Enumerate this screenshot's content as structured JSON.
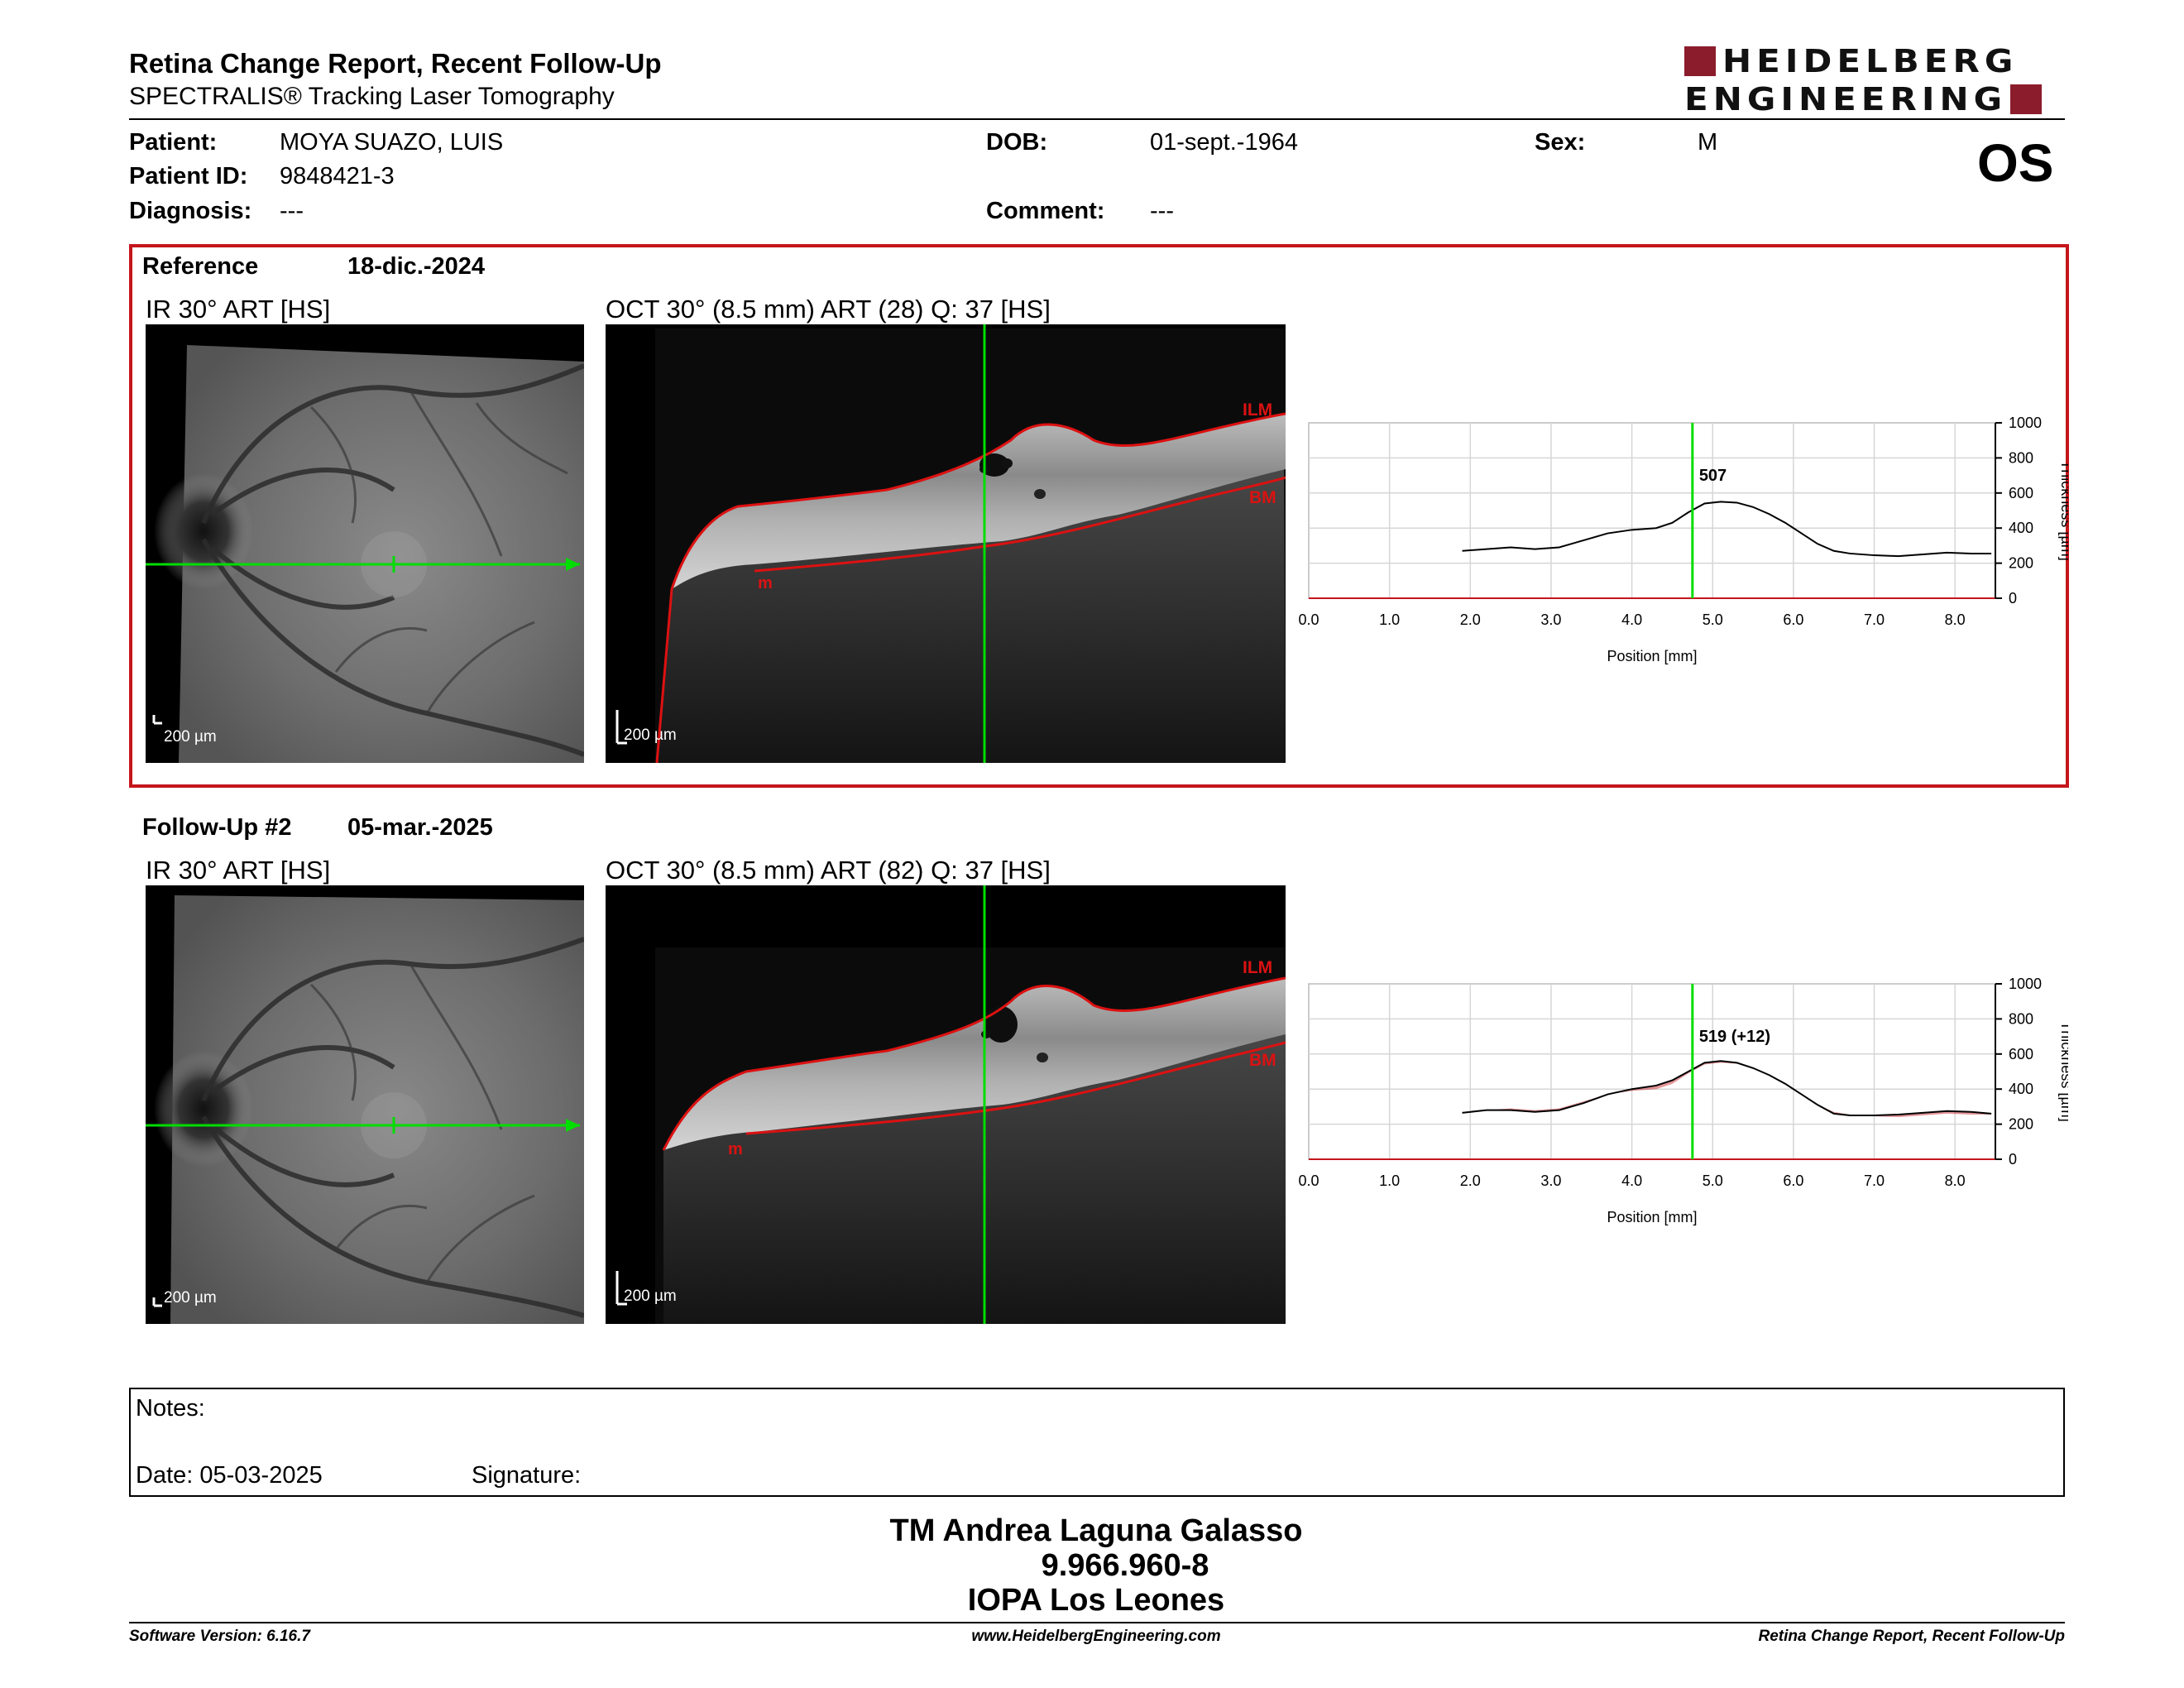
{
  "header": {
    "title": "Retina Change Report, Recent Follow-Up",
    "subtitle": "SPECTRALIS® Tracking Laser Tomography",
    "logo_line1": "HEIDELBERG",
    "logo_line2": "ENGINEERING",
    "eye": "OS"
  },
  "patient": {
    "patient_label": "Patient:",
    "patient_value": "MOYA SUAZO, LUIS",
    "id_label": "Patient ID:",
    "id_value": "9848421-3",
    "diagnosis_label": "Diagnosis:",
    "diagnosis_value": "---",
    "dob_label": "DOB:",
    "dob_value": "01-sept.-1964",
    "comment_label": "Comment:",
    "comment_value": "---",
    "sex_label": "Sex:",
    "sex_value": "M"
  },
  "reference": {
    "label": "Reference",
    "date": "18-dic.-2024",
    "ir_caption": "IR 30° ART [HS]",
    "oct_caption": "OCT 30° (8.5 mm) ART (28) Q: 37 [HS]",
    "scale": "200 µm",
    "ilm": "ILM",
    "bm": "BM",
    "m": "m"
  },
  "followup": {
    "label": "Follow-Up #2",
    "date": "05-mar.-2025",
    "ir_caption": "IR 30° ART [HS]",
    "oct_caption": "OCT 30° (8.5 mm) ART (82) Q: 37 [HS]",
    "scale": "200 µm",
    "ilm": "ILM",
    "bm": "BM",
    "m": "m"
  },
  "colors": {
    "accent_red": "#c4161c",
    "logo_red": "#8b1c2c",
    "marker_green": "#00dd00",
    "segment_red": "#dd1111"
  },
  "chart_data": [
    {
      "type": "line",
      "xlabel": "Position [mm]",
      "ylabel": "Thickness [µm]",
      "xlim": [
        0,
        8.5
      ],
      "ylim": [
        0,
        1000
      ],
      "xticks": [
        "0.0",
        "1.0",
        "2.0",
        "3.0",
        "4.0",
        "5.0",
        "6.0",
        "7.0",
        "8.0"
      ],
      "yticks": [
        "0",
        "200",
        "400",
        "600",
        "800",
        "1000"
      ],
      "grid": true,
      "marker_x": 4.75,
      "marker_label": "507",
      "series": [
        {
          "x": [
            1.9,
            2.2,
            2.5,
            2.8,
            3.1,
            3.4,
            3.7,
            4.0,
            4.3,
            4.5,
            4.7,
            4.9,
            5.1,
            5.3,
            5.5,
            5.7,
            5.9,
            6.1,
            6.3,
            6.5,
            6.7,
            7.0,
            7.3,
            7.6,
            7.9,
            8.2,
            8.45
          ],
          "y": [
            270,
            280,
            290,
            280,
            290,
            330,
            370,
            390,
            400,
            430,
            490,
            540,
            550,
            545,
            520,
            480,
            430,
            370,
            310,
            270,
            255,
            245,
            240,
            250,
            260,
            255,
            255
          ]
        }
      ]
    },
    {
      "type": "line",
      "xlabel": "Position [mm]",
      "ylabel": "Thickness [µm]",
      "xlim": [
        0,
        8.5
      ],
      "ylim": [
        0,
        1000
      ],
      "xticks": [
        "0.0",
        "1.0",
        "2.0",
        "3.0",
        "4.0",
        "5.0",
        "6.0",
        "7.0",
        "8.0"
      ],
      "yticks": [
        "0",
        "200",
        "400",
        "600",
        "800",
        "1000"
      ],
      "grid": true,
      "marker_x": 4.75,
      "marker_label": "519 (+12)",
      "series": [
        {
          "x": [
            1.9,
            2.2,
            2.5,
            2.8,
            3.1,
            3.4,
            3.7,
            4.0,
            4.3,
            4.5,
            4.7,
            4.9,
            5.1,
            5.3,
            5.5,
            5.7,
            5.9,
            6.1,
            6.3,
            6.5,
            6.7,
            7.0,
            7.3,
            7.6,
            7.9,
            8.2,
            8.45
          ],
          "y": [
            265,
            280,
            280,
            270,
            280,
            320,
            370,
            400,
            420,
            450,
            500,
            550,
            560,
            550,
            520,
            480,
            430,
            370,
            310,
            260,
            250,
            250,
            255,
            265,
            275,
            270,
            260
          ]
        }
      ]
    }
  ],
  "notes": {
    "label": "Notes:",
    "date": "Date: 05-03-2025",
    "signature": "Signature:"
  },
  "operator": {
    "name": "TM Andrea Laguna Galasso",
    "id": "9.966.960-8",
    "org": "IOPA Los Leones"
  },
  "footer": {
    "software": "Software Version: 6.16.7",
    "website": "www.HeidelbergEngineering.com",
    "report": "Retina Change Report, Recent Follow-Up"
  }
}
